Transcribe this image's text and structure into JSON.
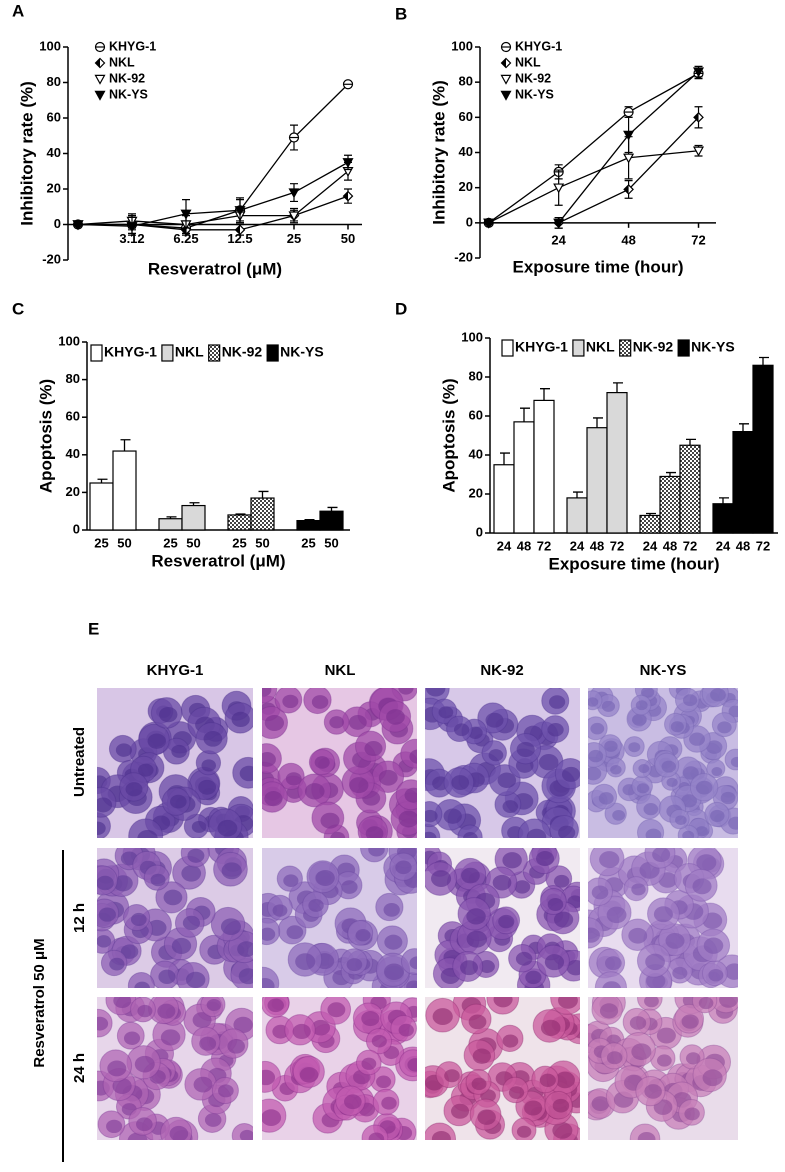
{
  "chart_data": [
    {
      "panel": "A",
      "type": "line",
      "x_label": "Resveratrol (μM)",
      "y_label": "Inhibitory rate (%)",
      "categories": [
        null,
        "3.12",
        "6.25",
        "12.5",
        "25",
        "50"
      ],
      "ylim": [
        -20,
        100
      ],
      "yticks": [
        -20,
        0,
        20,
        40,
        60,
        80,
        100
      ],
      "series": [
        {
          "name": "KHYG-1",
          "color": "#000000",
          "marker": "circle-open",
          "values": [
            0,
            0,
            -2,
            8,
            49,
            79
          ],
          "errors": [
            0,
            5,
            3,
            6,
            7,
            0
          ]
        },
        {
          "name": "NKL",
          "color": "#000000",
          "marker": "diamond",
          "values": [
            0,
            0,
            -3,
            -3,
            5,
            16
          ],
          "errors": [
            0,
            3,
            3,
            3,
            3,
            4
          ]
        },
        {
          "name": "NK-92",
          "color": "#000000",
          "marker": "triangle-open",
          "values": [
            0,
            2,
            0,
            5,
            5,
            30
          ],
          "errors": [
            0,
            4,
            5,
            4,
            4,
            5
          ]
        },
        {
          "name": "NK-YS",
          "color": "#000000",
          "marker": "triangle-filled",
          "values": [
            0,
            -1,
            6,
            8,
            18,
            35
          ],
          "errors": [
            0,
            5,
            8,
            7,
            5,
            4
          ]
        }
      ]
    },
    {
      "panel": "B",
      "type": "line",
      "x_label": "Exposure time (hour)",
      "y_label": "Inhibitory rate (%)",
      "x": [
        0,
        24,
        48,
        72
      ],
      "xlim": [
        -3,
        78
      ],
      "xticks": [
        24,
        48,
        72
      ],
      "ylim": [
        -20,
        100
      ],
      "yticks": [
        -20,
        0,
        20,
        40,
        60,
        80,
        100
      ],
      "series": [
        {
          "name": "KHYG-1",
          "color": "#000000",
          "marker": "circle-open",
          "values": [
            0,
            29,
            63,
            85
          ],
          "errors": [
            0,
            4,
            3,
            3
          ]
        },
        {
          "name": "NKL",
          "color": "#000000",
          "marker": "diamond",
          "values": [
            0,
            0,
            19,
            60
          ],
          "errors": [
            0,
            3,
            5,
            6
          ]
        },
        {
          "name": "NK-92",
          "color": "#000000",
          "marker": "triangle-open",
          "values": [
            0,
            20,
            37,
            41
          ],
          "errors": [
            0,
            10,
            12,
            3
          ]
        },
        {
          "name": "NK-YS",
          "color": "#000000",
          "marker": "triangle-filled",
          "values": [
            0,
            0,
            50,
            86
          ],
          "errors": [
            0,
            3,
            10,
            3
          ]
        }
      ]
    },
    {
      "panel": "C",
      "type": "bar",
      "x_label": "Resveratrol (μM)",
      "y_label": "Apoptosis (%)",
      "categories": [
        "25",
        "50"
      ],
      "ylim": [
        0,
        100
      ],
      "yticks": [
        0,
        20,
        40,
        60,
        80,
        100
      ],
      "series": [
        {
          "name": "KHYG-1",
          "color": "#ffffff",
          "values": [
            25,
            42
          ],
          "errors": [
            2,
            6
          ]
        },
        {
          "name": "NKL",
          "color": "#d9d9d9",
          "values": [
            6,
            13
          ],
          "errors": [
            1,
            1.5
          ]
        },
        {
          "name": "NK-92",
          "color": "#808080",
          "pattern": "checker",
          "values": [
            8,
            17
          ],
          "errors": [
            0.5,
            3.5
          ]
        },
        {
          "name": "NK-YS",
          "color": "#000000",
          "values": [
            5,
            10
          ],
          "errors": [
            0.5,
            2
          ]
        }
      ]
    },
    {
      "panel": "D",
      "type": "bar",
      "x_label": "Exposure time (hour)",
      "y_label": "Apoptosis (%)",
      "categories": [
        "24",
        "48",
        "72"
      ],
      "ylim": [
        0,
        100
      ],
      "yticks": [
        0,
        20,
        40,
        60,
        80,
        100
      ],
      "series": [
        {
          "name": "KHYG-1",
          "color": "#ffffff",
          "values": [
            35,
            57,
            68
          ],
          "errors": [
            6,
            7,
            6
          ]
        },
        {
          "name": "NKL",
          "color": "#d9d9d9",
          "values": [
            18,
            54,
            72
          ],
          "errors": [
            3,
            5,
            5
          ]
        },
        {
          "name": "NK-92",
          "color": "#808080",
          "pattern": "checker",
          "values": [
            9,
            29,
            45
          ],
          "errors": [
            1,
            2,
            3
          ]
        },
        {
          "name": "NK-YS",
          "color": "#000000",
          "values": [
            15,
            52,
            86
          ],
          "errors": [
            3,
            4,
            4
          ]
        }
      ]
    }
  ],
  "panel_e": {
    "panel": "E",
    "columns": [
      "KHYG-1",
      "NKL",
      "NK-92",
      "NK-YS"
    ],
    "rows": [
      "Untreated",
      "12 h",
      "24 h"
    ],
    "group_label": "Resveratrol 50 μM"
  }
}
